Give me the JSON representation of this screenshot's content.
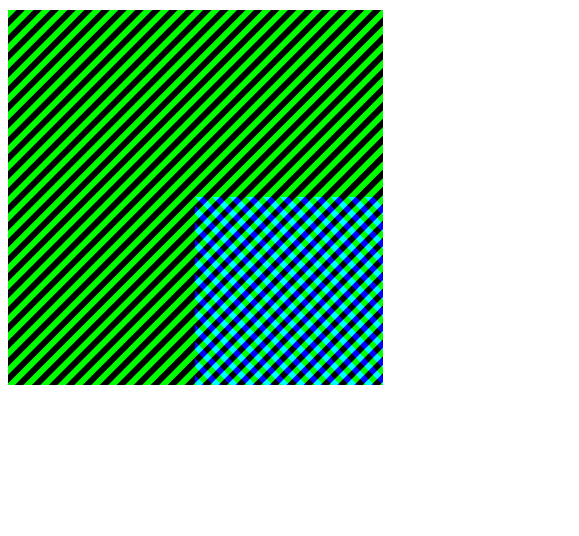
{
  "colors": {
    "background": "#ffffff",
    "green_stripe": "#00ff00",
    "blue_stripe": "#0000ff",
    "dark_stripe": "#000000"
  },
  "shapes": [
    {
      "name": "green-striped-square",
      "stripe_color": "#00ff00",
      "stripe_direction": "diagonal-down-left"
    },
    {
      "name": "blue-striped-square",
      "stripe_color": "#0000ff",
      "stripe_direction": "diagonal-down-left",
      "blend": "screen"
    }
  ]
}
